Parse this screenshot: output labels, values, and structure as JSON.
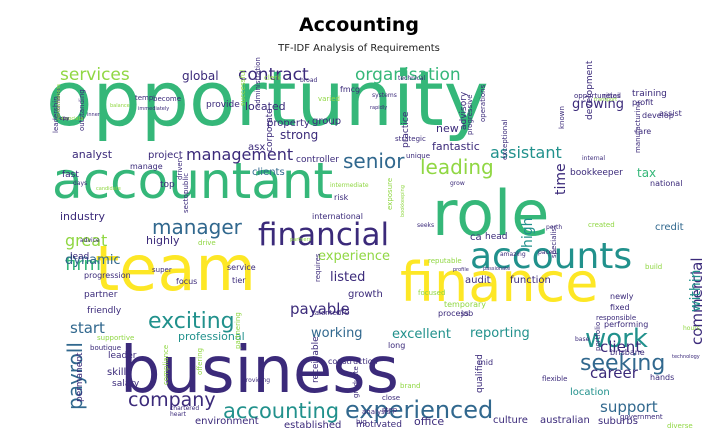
{
  "title": "Accounting",
  "subtitle": "TF-IDF Analysis of Requirements",
  "palette": {
    "dark_purple": "#440154",
    "indigo": "#3b2a7a",
    "blue": "#31688e",
    "teal": "#21918c",
    "green": "#35b779",
    "lime": "#90d743",
    "yellow": "#fde725"
  },
  "words": [
    {
      "t": "opportunity",
      "s": 76,
      "c": "green",
      "r": 0
    },
    {
      "t": "accountant",
      "s": 50,
      "c": "green",
      "r": 0
    },
    {
      "t": "role",
      "s": 62,
      "c": "green",
      "r": 0
    },
    {
      "t": "team",
      "s": 62,
      "c": "yellow",
      "r": 0
    },
    {
      "t": "finance",
      "s": 54,
      "c": "yellow",
      "r": 0
    },
    {
      "t": "business",
      "s": 64,
      "c": "indigo",
      "r": 0
    },
    {
      "t": "accounts",
      "s": 36,
      "c": "teal",
      "r": 0
    },
    {
      "t": "financial",
      "s": 31,
      "c": "indigo",
      "r": 0
    },
    {
      "t": "experienced",
      "s": 24,
      "c": "blue",
      "r": 0
    },
    {
      "t": "accounting",
      "s": 21,
      "c": "teal",
      "r": 0
    },
    {
      "t": "company",
      "s": 19,
      "c": "indigo",
      "r": 0
    },
    {
      "t": "services",
      "s": 17,
      "c": "lime",
      "r": 0
    },
    {
      "t": "global",
      "s": 12,
      "c": "indigo",
      "r": 0
    },
    {
      "t": "contract",
      "s": 17,
      "c": "indigo",
      "r": 0
    },
    {
      "t": "organisation",
      "s": 17,
      "c": "green",
      "r": 0
    },
    {
      "t": "growing",
      "s": 13,
      "c": "indigo",
      "r": 0
    },
    {
      "t": "management",
      "s": 16,
      "c": "indigo",
      "r": 0
    },
    {
      "t": "senior",
      "s": 20,
      "c": "blue",
      "r": 0
    },
    {
      "t": "leading",
      "s": 20,
      "c": "lime",
      "r": 0
    },
    {
      "t": "assistant",
      "s": 16,
      "c": "teal",
      "r": 0
    },
    {
      "t": "time",
      "s": 14,
      "c": "indigo",
      "r": -90
    },
    {
      "t": "tax",
      "s": 12,
      "c": "green",
      "r": 0
    },
    {
      "t": "manager",
      "s": 20,
      "c": "blue",
      "r": 0
    },
    {
      "t": "great",
      "s": 16,
      "c": "lime",
      "r": 0
    },
    {
      "t": "firm",
      "s": 18,
      "c": "green",
      "r": 0
    },
    {
      "t": "dynamic",
      "s": 13,
      "c": "blue",
      "r": 0
    },
    {
      "t": "payroll",
      "s": 20,
      "c": "blue",
      "r": -90
    },
    {
      "t": "start",
      "s": 15,
      "c": "blue",
      "r": 0
    },
    {
      "t": "exciting",
      "s": 22,
      "c": "teal",
      "r": 0
    },
    {
      "t": "payable",
      "s": 15,
      "c": "indigo",
      "r": 0
    },
    {
      "t": "work",
      "s": 26,
      "c": "teal",
      "r": 0
    },
    {
      "t": "seeking",
      "s": 22,
      "c": "blue",
      "r": 0
    },
    {
      "t": "client",
      "s": 15,
      "c": "indigo",
      "r": 0
    },
    {
      "t": "career",
      "s": 15,
      "c": "indigo",
      "r": 0
    },
    {
      "t": "commercial",
      "s": 15,
      "c": "indigo",
      "r": -90
    },
    {
      "t": "support",
      "s": 15,
      "c": "blue",
      "r": 0
    },
    {
      "t": "excellent",
      "s": 13,
      "c": "teal",
      "r": 0
    },
    {
      "t": "reporting",
      "s": 13,
      "c": "teal",
      "r": 0
    },
    {
      "t": "working",
      "s": 13,
      "c": "blue",
      "r": 0
    },
    {
      "t": "experience",
      "s": 13,
      "c": "lime",
      "r": 0
    },
    {
      "t": "listed",
      "s": 13,
      "c": "indigo",
      "r": 0
    },
    {
      "t": "within",
      "s": 14,
      "c": "teal",
      "r": -90
    },
    {
      "t": "high",
      "s": 14,
      "c": "teal",
      "r": -90
    },
    {
      "t": "fantastic",
      "s": 11,
      "c": "indigo",
      "r": 0
    },
    {
      "t": "analyst",
      "s": 11,
      "c": "indigo",
      "r": 0
    },
    {
      "t": "project",
      "s": 10,
      "c": "indigo",
      "r": 0
    },
    {
      "t": "industry",
      "s": 11,
      "c": "indigo",
      "r": 0
    },
    {
      "t": "highly",
      "s": 11,
      "c": "indigo",
      "r": 0
    },
    {
      "t": "strong",
      "s": 12,
      "c": "indigo",
      "r": 0
    },
    {
      "t": "located",
      "s": 11,
      "c": "indigo",
      "r": 0
    },
    {
      "t": "property",
      "s": 10,
      "c": "indigo",
      "r": 0
    },
    {
      "t": "group",
      "s": 10,
      "c": "indigo",
      "r": 0
    },
    {
      "t": "new",
      "s": 11,
      "c": "indigo",
      "r": 0
    },
    {
      "t": "asx",
      "s": 10,
      "c": "indigo",
      "r": 0
    },
    {
      "t": "clients",
      "s": 10,
      "c": "blue",
      "r": 0
    },
    {
      "t": "bookkeeper",
      "s": 9,
      "c": "indigo",
      "r": 0
    },
    {
      "t": "credit",
      "s": 10,
      "c": "blue",
      "r": 0
    },
    {
      "t": "growth",
      "s": 10,
      "c": "indigo",
      "r": 0
    },
    {
      "t": "audit",
      "s": 10,
      "c": "indigo",
      "r": 0
    },
    {
      "t": "function",
      "s": 10,
      "c": "indigo",
      "r": 0
    },
    {
      "t": "location",
      "s": 10,
      "c": "teal",
      "r": 0
    },
    {
      "t": "professional",
      "s": 11,
      "c": "teal",
      "r": 0
    },
    {
      "t": "environment",
      "s": 10,
      "c": "indigo",
      "r": 0
    },
    {
      "t": "established",
      "s": 10,
      "c": "indigo",
      "r": 0
    },
    {
      "t": "motivated",
      "s": 9,
      "c": "indigo",
      "r": 0
    },
    {
      "t": "office",
      "s": 11,
      "c": "indigo",
      "r": 0
    },
    {
      "t": "culture",
      "s": 10,
      "c": "indigo",
      "r": 0
    },
    {
      "t": "australian",
      "s": 10,
      "c": "indigo",
      "r": 0
    },
    {
      "t": "suburbs",
      "s": 10,
      "c": "indigo",
      "r": 0
    },
    {
      "t": "skills",
      "s": 10,
      "c": "indigo",
      "r": 0
    },
    {
      "t": "salary",
      "s": 9,
      "c": "indigo",
      "r": 0
    },
    {
      "t": "leader",
      "s": 9,
      "c": "indigo",
      "r": 0
    },
    {
      "t": "partner",
      "s": 9,
      "c": "indigo",
      "r": 0
    },
    {
      "t": "friendly",
      "s": 9,
      "c": "indigo",
      "r": 0
    },
    {
      "t": "lead",
      "s": 9,
      "c": "indigo",
      "r": 0
    },
    {
      "t": "progression",
      "s": 8,
      "c": "indigo",
      "r": 0
    },
    {
      "t": "ca",
      "s": 10,
      "c": "indigo",
      "r": 0
    },
    {
      "t": "head",
      "s": 9,
      "c": "indigo",
      "r": 0
    },
    {
      "t": "fast",
      "s": 9,
      "c": "indigo",
      "r": 0
    },
    {
      "t": "manage",
      "s": 8,
      "c": "indigo",
      "r": 0
    },
    {
      "t": "top",
      "s": 9,
      "c": "indigo",
      "r": 0
    },
    {
      "t": "controller",
      "s": 9,
      "c": "indigo",
      "r": 0
    },
    {
      "t": "risk",
      "s": 8,
      "c": "indigo",
      "r": 0
    },
    {
      "t": "international",
      "s": 8,
      "c": "indigo",
      "r": 0
    },
    {
      "t": "provide",
      "s": 9,
      "c": "indigo",
      "r": 0
    },
    {
      "t": "corporate",
      "s": 9,
      "c": "indigo",
      "r": -90
    },
    {
      "t": "advisory",
      "s": 9,
      "c": "indigo",
      "r": -90
    },
    {
      "t": "practice",
      "s": 9,
      "c": "indigo",
      "r": -90
    },
    {
      "t": "development",
      "s": 9,
      "c": "indigo",
      "r": -90
    },
    {
      "t": "receivable",
      "s": 9,
      "c": "indigo",
      "r": -90
    },
    {
      "t": "qualified",
      "s": 9,
      "c": "indigo",
      "r": -90
    },
    {
      "t": "permanent",
      "s": 9,
      "c": "indigo",
      "r": -90
    },
    {
      "t": "training",
      "s": 9,
      "c": "indigo",
      "r": 0
    },
    {
      "t": "retail",
      "s": 7,
      "c": "indigo",
      "r": 0
    },
    {
      "t": "opportunities",
      "s": 7,
      "c": "indigo",
      "r": 0
    },
    {
      "t": "develop",
      "s": 8,
      "c": "indigo",
      "r": 0
    },
    {
      "t": "assist",
      "s": 8,
      "c": "indigo",
      "r": 0
    },
    {
      "t": "rare",
      "s": 8,
      "c": "indigo",
      "r": 0
    },
    {
      "t": "profit",
      "s": 8,
      "c": "indigo",
      "r": 0
    },
    {
      "t": "national",
      "s": 8,
      "c": "indigo",
      "r": 0
    },
    {
      "t": "focus",
      "s": 8,
      "c": "indigo",
      "r": 0
    },
    {
      "t": "tier",
      "s": 8,
      "c": "indigo",
      "r": 0
    },
    {
      "t": "service",
      "s": 8,
      "c": "indigo",
      "r": 0
    },
    {
      "t": "construction",
      "s": 8,
      "c": "indigo",
      "r": 0
    },
    {
      "t": "cfo",
      "s": 9,
      "c": "indigo",
      "r": 0
    },
    {
      "t": "long",
      "s": 8,
      "c": "indigo",
      "r": 0
    },
    {
      "t": "mid",
      "s": 8,
      "c": "indigo",
      "r": 0
    },
    {
      "t": "job",
      "s": 8,
      "c": "indigo",
      "r": 0
    },
    {
      "t": "process",
      "s": 8,
      "c": "indigo",
      "r": 0
    },
    {
      "t": "newly",
      "s": 8,
      "c": "indigo",
      "r": 0
    },
    {
      "t": "fixed",
      "s": 8,
      "c": "indigo",
      "r": 0
    },
    {
      "t": "performing",
      "s": 8,
      "c": "indigo",
      "r": 0
    },
    {
      "t": "responsible",
      "s": 7,
      "c": "indigo",
      "r": 0
    },
    {
      "t": "brisbane",
      "s": 8,
      "c": "indigo",
      "r": 0
    },
    {
      "t": "hands",
      "s": 8,
      "c": "indigo",
      "r": 0
    },
    {
      "t": "flexible",
      "s": 7,
      "c": "indigo",
      "r": 0
    },
    {
      "t": "step",
      "s": 7,
      "c": "indigo",
      "r": 0
    },
    {
      "t": "close",
      "s": 7,
      "c": "indigo",
      "r": 0
    },
    {
      "t": "analysis",
      "s": 7,
      "c": "indigo",
      "r": 0
    },
    {
      "t": "big",
      "s": 7,
      "c": "indigo",
      "r": 0
    },
    {
      "t": "temp",
      "s": 7,
      "c": "indigo",
      "r": 0
    },
    {
      "t": "become",
      "s": 7,
      "c": "indigo",
      "r": 0
    },
    {
      "t": "fmcg",
      "s": 8,
      "c": "indigo",
      "r": 0
    },
    {
      "t": "strategic",
      "s": 7,
      "c": "indigo",
      "r": 0
    },
    {
      "t": "unique",
      "s": 7,
      "c": "indigo",
      "r": 0
    },
    {
      "t": "talented",
      "s": 7,
      "c": "indigo",
      "r": 0
    },
    {
      "t": "temporary",
      "s": 8,
      "c": "lime",
      "r": 0
    },
    {
      "t": "brand",
      "s": 7,
      "c": "lime",
      "r": 0
    },
    {
      "t": "supportive",
      "s": 7,
      "c": "lime",
      "r": 0
    },
    {
      "t": "boutique",
      "s": 7,
      "c": "indigo",
      "r": 0
    },
    {
      "t": "super",
      "s": 7,
      "c": "indigo",
      "r": 0
    },
    {
      "t": "drive",
      "s": 7,
      "c": "lime",
      "r": 0
    },
    {
      "t": "reputable",
      "s": 7,
      "c": "lime",
      "r": 0
    },
    {
      "t": "focused",
      "s": 7,
      "c": "lime",
      "r": 0
    },
    {
      "t": "build",
      "s": 7,
      "c": "lime",
      "r": 0
    },
    {
      "t": "government",
      "s": 7,
      "c": "indigo",
      "r": 0
    },
    {
      "t": "diverse",
      "s": 7,
      "c": "lime",
      "r": 0
    },
    {
      "t": "varied",
      "s": 7,
      "c": "lime",
      "r": 0
    },
    {
      "t": "created",
      "s": 7,
      "c": "lime",
      "r": 0
    },
    {
      "t": "specialist",
      "s": 7,
      "c": "indigo",
      "r": -90
    },
    {
      "t": "outstanding",
      "s": 7,
      "c": "indigo",
      "r": -90
    },
    {
      "t": "leadership",
      "s": 7,
      "c": "indigo",
      "r": -90
    },
    {
      "t": "successful",
      "s": 7,
      "c": "lime",
      "r": -90
    },
    {
      "t": "administration",
      "s": 7,
      "c": "indigo",
      "r": -90
    },
    {
      "t": "manufacturing",
      "s": 7,
      "c": "indigo",
      "r": -90
    },
    {
      "t": "operations",
      "s": 7,
      "c": "indigo",
      "r": -90
    },
    {
      "t": "progressive",
      "s": 7,
      "c": "indigo",
      "r": -90
    },
    {
      "t": "requires",
      "s": 7,
      "c": "indigo",
      "r": -90
    },
    {
      "t": "offering",
      "s": 7,
      "c": "lime",
      "r": -90
    },
    {
      "t": "partnering",
      "s": 7,
      "c": "lime",
      "r": -90
    },
    {
      "t": "compliance",
      "s": 7,
      "c": "lime",
      "r": -90
    },
    {
      "t": "graduate",
      "s": 7,
      "c": "indigo",
      "r": -90
    },
    {
      "t": "exposure",
      "s": 7,
      "c": "lime",
      "r": -90
    },
    {
      "t": "known",
      "s": 7,
      "c": "indigo",
      "r": -90
    },
    {
      "t": "exceptional",
      "s": 7,
      "c": "indigo",
      "r": -90
    },
    {
      "t": "portfolio",
      "s": 7,
      "c": "indigo",
      "r": -90
    },
    {
      "t": "driven",
      "s": 7,
      "c": "indigo",
      "r": -90
    },
    {
      "t": "public",
      "s": 7,
      "c": "indigo",
      "r": -90
    },
    {
      "t": "sector",
      "s": 7,
      "c": "indigo",
      "r": -90
    },
    {
      "t": "intermediate",
      "s": 6,
      "c": "lime",
      "r": 0
    },
    {
      "t": "bookkeeping",
      "s": 5,
      "c": "lime",
      "r": -90
    },
    {
      "t": "grow",
      "s": 6,
      "c": "indigo",
      "r": 0
    },
    {
      "t": "perth",
      "s": 6,
      "c": "indigo",
      "r": 0
    },
    {
      "t": "seeks",
      "s": 6,
      "c": "indigo",
      "r": 0
    },
    {
      "t": "advice",
      "s": 6,
      "c": "indigo",
      "r": 0
    },
    {
      "t": "providing",
      "s": 6,
      "c": "indigo",
      "r": 0
    },
    {
      "t": "chartered",
      "s": 6,
      "c": "indigo",
      "r": 0
    },
    {
      "t": "heart",
      "s": 6,
      "c": "indigo",
      "r": 0
    },
    {
      "t": "broad",
      "s": 6,
      "c": "indigo",
      "r": 0
    },
    {
      "t": "clerk",
      "s": 7,
      "c": "lime",
      "r": 0
    },
    {
      "t": "systems",
      "s": 6,
      "c": "indigo",
      "r": 0
    },
    {
      "t": "technical",
      "s": 6,
      "c": "indigo",
      "r": 0
    },
    {
      "t": "technology",
      "s": 5,
      "c": "indigo",
      "r": 0
    },
    {
      "t": "passionate",
      "s": 5,
      "c": "indigo",
      "r": 0
    },
    {
      "t": "paced",
      "s": 6,
      "c": "indigo",
      "r": 0
    },
    {
      "t": "amazing",
      "s": 6,
      "c": "indigo",
      "r": 0
    },
    {
      "t": "base",
      "s": 6,
      "c": "indigo",
      "r": 0
    },
    {
      "t": "partners",
      "s": 5,
      "c": "lime",
      "r": 0
    },
    {
      "t": "rapidly",
      "s": 5,
      "c": "indigo",
      "r": 0
    },
    {
      "t": "internal",
      "s": 6,
      "c": "indigo",
      "r": 0
    },
    {
      "t": "days",
      "s": 6,
      "c": "indigo",
      "r": 0
    },
    {
      "t": "inner",
      "s": 5,
      "c": "indigo",
      "r": 0
    },
    {
      "t": "balance",
      "s": 5,
      "c": "lime",
      "r": 0
    },
    {
      "t": "candidate",
      "s": 5,
      "c": "lime",
      "r": 0
    },
    {
      "t": "immediately",
      "s": 5,
      "c": "indigo",
      "r": 0
    },
    {
      "t": "profile",
      "s": 5,
      "c": "indigo",
      "r": 0
    },
    {
      "t": "hours",
      "s": 6,
      "c": "lime",
      "r": 0
    },
    {
      "t": "transport",
      "s": 5,
      "c": "lime",
      "r": 0
    },
    {
      "t": "associate",
      "s": 5,
      "c": "lime",
      "r": 0
    },
    {
      "t": "due",
      "s": 5,
      "c": "lime",
      "r": 0
    },
    {
      "t": "cpa",
      "s": 5,
      "c": "indigo",
      "r": 0
    },
    {
      "t": "city",
      "s": 5,
      "c": "indigo",
      "r": 0
    },
    {
      "t": "performance",
      "s": 5,
      "c": "indigo",
      "r": -90
    },
    {
      "t": "reconciliations",
      "s": 5,
      "c": "lime",
      "r": -90
    }
  ]
}
